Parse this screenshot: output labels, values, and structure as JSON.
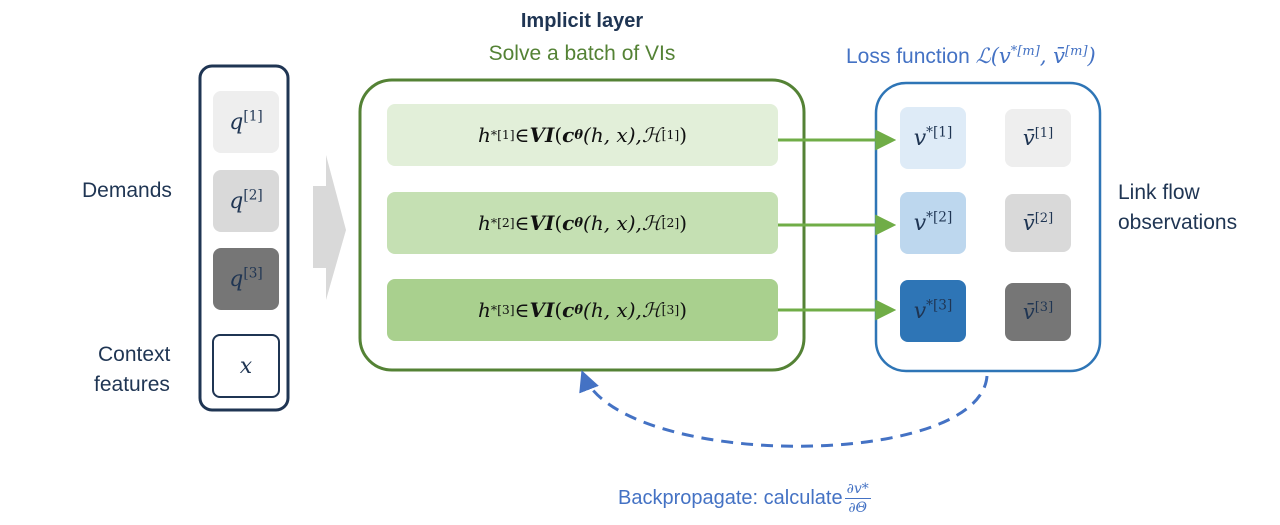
{
  "title": "Implicit layer",
  "subtitle": "Solve a batch of VIs",
  "left_labels": {
    "demands": "Demands",
    "context_1": "Context",
    "context_2": "features"
  },
  "right_labels": {
    "line1": "Link flow",
    "line2": "observations"
  },
  "demand_symbol": "q",
  "context_symbol": "x",
  "demands": [
    "[1]",
    "[2]",
    "[3]"
  ],
  "vi_rows": [
    {
      "index": "[1]"
    },
    {
      "index": "[2]"
    },
    {
      "index": "[3]"
    }
  ],
  "vi_parts": {
    "h": "h",
    "star": "*",
    "in": " ∈ ",
    "vi": "VI",
    "c": "c",
    "theta": "θ",
    "args": "(h, x), ",
    "H": "ℋ",
    "close": ")"
  },
  "loss": {
    "prefix": "Loss function ",
    "L": "ℒ",
    "v": "v",
    "star": "*",
    "m": "[m]",
    "vbar": "v̄",
    "comma": ", "
  },
  "predictions": [
    "[1]",
    "[2]",
    "[3]"
  ],
  "observations": [
    "[1]",
    "[2]",
    "[3]"
  ],
  "backprop": {
    "text": "Backpropagate: calculate ",
    "num": "∂v*",
    "den": "∂Θ"
  },
  "colors": {
    "navy": "#1f3553",
    "green": "#548235",
    "green_arrow": "#70ad47",
    "blue_box": "#2e75b6",
    "blue_text": "#4472c4",
    "row1": "#e2efd9",
    "row2": "#c5e0b3",
    "row3": "#a9d08e",
    "pred1": "#deebf7",
    "pred2": "#bdd7ee",
    "pred3": "#2e75b6",
    "gray1": "#eeeeee",
    "gray2": "#d9d9d9",
    "gray3": "#767676",
    "big_arrow": "#d9d9d9"
  }
}
